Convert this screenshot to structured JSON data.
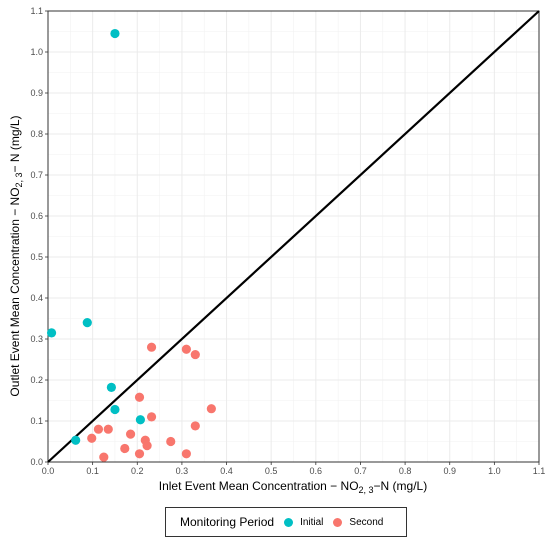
{
  "chart_data": {
    "type": "scatter",
    "xlabel_main": "Inlet Event Mean Concentration − NO",
    "xlabel_sub": "2, 3",
    "xlabel_tail": "−N (mg/L)",
    "ylabel_main": "Outlet Event Mean Concentration − NO",
    "ylabel_sub": "2, 3",
    "ylabel_tail": "− N (mg/L)",
    "xlim": [
      0,
      1.1
    ],
    "ylim": [
      0,
      1.1
    ],
    "ticks": [
      "0.0",
      "0.1",
      "0.2",
      "0.3",
      "0.4",
      "0.5",
      "0.6",
      "0.7",
      "0.8",
      "0.9",
      "1.0",
      "1.1"
    ],
    "tick_values": [
      0,
      0.1,
      0.2,
      0.3,
      0.4,
      0.5,
      0.6,
      0.7,
      0.8,
      0.9,
      1.0,
      1.1
    ],
    "grid": true,
    "reference_line": "y = x",
    "legend_title": "Monitoring Period",
    "legend_position": "bottom",
    "series": [
      {
        "name": "Initial",
        "color": "#00BFC4",
        "points": [
          [
            0.15,
            1.045
          ],
          [
            0.008,
            0.315
          ],
          [
            0.088,
            0.34
          ],
          [
            0.142,
            0.182
          ],
          [
            0.15,
            0.128
          ],
          [
            0.207,
            0.103
          ],
          [
            0.062,
            0.053
          ]
        ]
      },
      {
        "name": "Second",
        "color": "#F8766D",
        "points": [
          [
            0.232,
            0.28
          ],
          [
            0.31,
            0.275
          ],
          [
            0.33,
            0.262
          ],
          [
            0.205,
            0.158
          ],
          [
            0.366,
            0.13
          ],
          [
            0.232,
            0.11
          ],
          [
            0.33,
            0.088
          ],
          [
            0.113,
            0.08
          ],
          [
            0.135,
            0.08
          ],
          [
            0.185,
            0.068
          ],
          [
            0.098,
            0.058
          ],
          [
            0.218,
            0.053
          ],
          [
            0.275,
            0.05
          ],
          [
            0.222,
            0.04
          ],
          [
            0.172,
            0.033
          ],
          [
            0.205,
            0.02
          ],
          [
            0.31,
            0.02
          ],
          [
            0.125,
            0.012
          ]
        ]
      }
    ]
  }
}
